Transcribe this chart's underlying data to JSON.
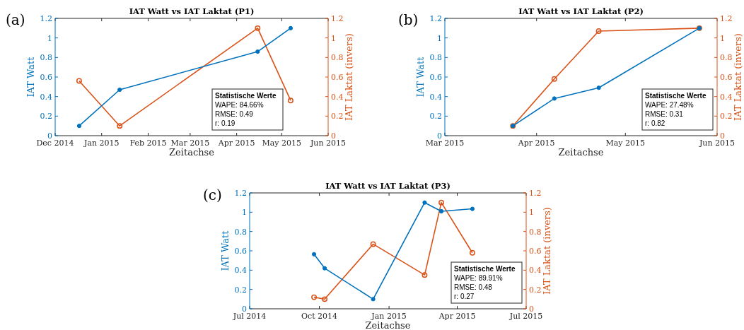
{
  "chart_data": [
    {
      "type": "line",
      "title": "IAT Watt vs IAT Laktat (P1)",
      "xlabel": "Zeitachse",
      "ylabel": "IAT Watt",
      "y2label": "IAT Laktat (invers)",
      "annotations": [
        "(a)",
        "Statistische Werte",
        "WAPE: 84.66%",
        "RMSE: 0.49",
        "r: 0.19"
      ],
      "x": [
        "2014-12-17",
        "2015-01-13",
        "2015-04-15",
        "2015-05-07"
      ],
      "series": [
        {
          "color": "#0072bd",
          "values": [
            0.1,
            0.47,
            0.86,
            1.1
          ],
          "marker": "circle"
        },
        {
          "color": "#d95319",
          "values": [
            0.56,
            0.1,
            1.1,
            0.36
          ],
          "marker": "circle",
          "axis": "y2"
        }
      ],
      "xlim": [
        "2014-12-01",
        "2015-06-01"
      ],
      "xticks": [
        {
          "value": "2014-12-01",
          "label": "Dec 2014"
        },
        {
          "value": "2015-01-01",
          "label": "Jan 2015"
        },
        {
          "value": "2015-02-01",
          "label": "Feb 2015"
        },
        {
          "value": "2015-03-01",
          "label": "Mar 2015"
        },
        {
          "value": "2015-04-01",
          "label": "Apr 2015"
        },
        {
          "value": "2015-05-01",
          "label": "May 2015"
        },
        {
          "value": "2015-06-01",
          "label": "Jun 2015"
        }
      ],
      "ylim": [
        0,
        1.2
      ],
      "yticks": [
        0,
        0.2,
        0.4,
        0.6,
        0.8,
        1,
        1.2
      ],
      "y2lim": [
        0,
        1.2
      ],
      "y2ticks": [
        0,
        0.2,
        0.4,
        0.6,
        0.8,
        1,
        1.2
      ],
      "grid": false
    },
    {
      "type": "line",
      "title": "IAT Watt vs IAT Laktat (P2)",
      "xlabel": "Zeitachse",
      "ylabel": "IAT Watt",
      "y2label": "IAT Laktat (invers)",
      "annotations": [
        "(b)",
        "Statistische Werte",
        "WAPE: 27.48%",
        "RMSE: 0.31",
        "r: 0.82"
      ],
      "x": [
        "2015-03-24",
        "2015-04-07",
        "2015-04-22",
        "2015-05-26"
      ],
      "series": [
        {
          "color": "#0072bd",
          "values": [
            0.1,
            0.38,
            0.49,
            1.1
          ],
          "marker": "circle"
        },
        {
          "color": "#d95319",
          "values": [
            0.1,
            0.58,
            1.07,
            1.1
          ],
          "marker": "circle",
          "axis": "y2"
        }
      ],
      "xlim": [
        "2015-03-01",
        "2015-06-01"
      ],
      "xticks": [
        {
          "value": "2015-03-01",
          "label": "Mar 2015"
        },
        {
          "value": "2015-04-01",
          "label": "Apr 2015"
        },
        {
          "value": "2015-05-01",
          "label": "May 2015"
        },
        {
          "value": "2015-06-01",
          "label": "Jun 2015"
        }
      ],
      "ylim": [
        0,
        1.2
      ],
      "yticks": [
        0,
        0.2,
        0.4,
        0.6,
        0.8,
        1,
        1.2
      ],
      "y2lim": [
        0,
        1.2
      ],
      "y2ticks": [
        0,
        0.2,
        0.4,
        0.6,
        0.8,
        1,
        1.2
      ],
      "grid": false
    },
    {
      "type": "line",
      "title": "IAT Watt vs IAT Laktat (P3)",
      "xlabel": "Zeitachse",
      "ylabel": "IAT Watt",
      "y2label": "IAT Laktat (invers)",
      "annotations": [
        "(c)",
        "Statistische Werte",
        "WAPE: 89.91%",
        "RMSE: 0.48",
        "r: 0.27"
      ],
      "x": [
        "2014-09-24",
        "2014-10-08",
        "2014-12-11",
        "2015-02-17",
        "2015-03-11",
        "2015-04-21"
      ],
      "series": [
        {
          "color": "#0072bd",
          "values": [
            0.565,
            0.42,
            0.1,
            1.1,
            1.01,
            1.035
          ],
          "marker": "circle"
        },
        {
          "color": "#d95319",
          "values": [
            0.12,
            0.1,
            0.67,
            0.35,
            1.1,
            0.58
          ],
          "marker": "circle",
          "axis": "y2"
        }
      ],
      "xlim": [
        "2014-07-01",
        "2015-07-01"
      ],
      "xticks": [
        {
          "value": "2014-07-01",
          "label": "Jul 2014"
        },
        {
          "value": "2014-10-01",
          "label": "Oct 2014"
        },
        {
          "value": "2015-01-01",
          "label": "Jan 2015"
        },
        {
          "value": "2015-04-01",
          "label": "Apr 2015"
        },
        {
          "value": "2015-07-01",
          "label": "Jul 2015"
        }
      ],
      "ylim": [
        0,
        1.2
      ],
      "yticks": [
        0,
        0.2,
        0.4,
        0.6,
        0.8,
        1,
        1.2
      ],
      "y2lim": [
        0,
        1.2
      ],
      "y2ticks": [
        0,
        0.2,
        0.4,
        0.6,
        0.8,
        1,
        1.2
      ],
      "grid": false
    }
  ]
}
